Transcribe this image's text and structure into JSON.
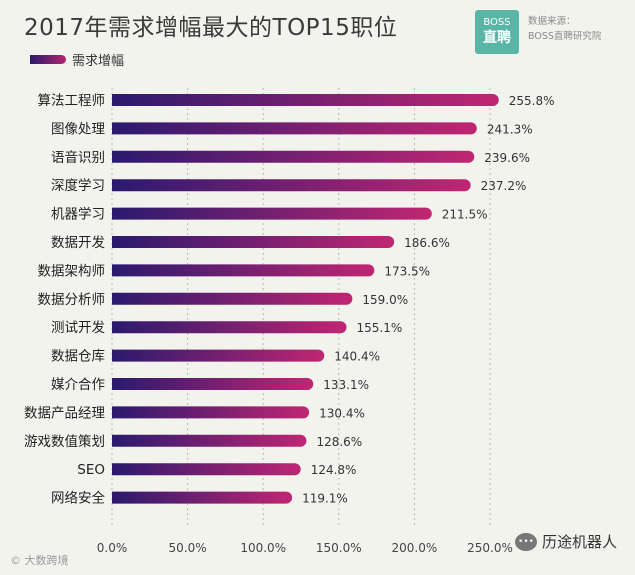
{
  "header": {
    "title": "2017年需求增幅最大的TOP15职位",
    "legend_label": "需求增幅",
    "logo_top": "BOSS",
    "logo_bottom": "直聘",
    "source_label": "数据来源：",
    "source_name": "BOSS直聘研究院"
  },
  "footer": {
    "left_text": "© 大数跨境",
    "right_text": "历途机器人",
    "right_icon": "wechat-icon"
  },
  "colors": {
    "bar_start": "#2a1a6e",
    "bar_end": "#c02672"
  },
  "chart_data": {
    "type": "bar",
    "orientation": "horizontal",
    "title": "2017年需求增幅最大的TOP15职位",
    "series": [
      {
        "name": "需求增幅",
        "values": [
          255.8,
          241.3,
          239.6,
          237.2,
          211.5,
          186.6,
          173.5,
          159.0,
          155.1,
          140.4,
          133.1,
          130.4,
          128.6,
          124.8,
          119.1
        ]
      }
    ],
    "categories": [
      "算法工程师",
      "图像处理",
      "语音识别",
      "深度学习",
      "机器学习",
      "数据开发",
      "数据架构师",
      "数据分析师",
      "测试开发",
      "数据仓库",
      "媒介合作",
      "数据产品经理",
      "游戏数值策划",
      "SEO",
      "网络安全"
    ],
    "data_labels": [
      "255.8%",
      "241.3%",
      "239.6%",
      "237.2%",
      "211.5%",
      "186.6%",
      "173.5%",
      "159.0%",
      "155.1%",
      "140.4%",
      "133.1%",
      "130.4%",
      "128.6%",
      "124.8%",
      "119.1%"
    ],
    "x_ticks": [
      "0.0%",
      "50.0%",
      "100.0%",
      "150.0%",
      "200.0%",
      "250.0%"
    ],
    "xlim": [
      0,
      250
    ],
    "xlabel": "",
    "ylabel": "",
    "grid": "vertical-dotted",
    "legend": "top-left"
  }
}
